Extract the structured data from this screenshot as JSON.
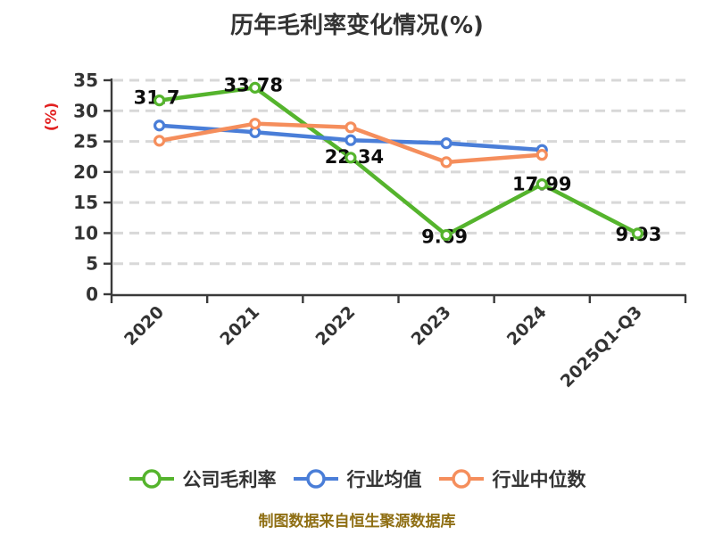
{
  "title": "历年毛利率变化情况(%)",
  "caption": "制图数据来自恒生聚源数据库",
  "ylabel": "(%)",
  "chart_data": {
    "type": "line",
    "title": "历年毛利率变化情况(%)",
    "ylabel": "(%)",
    "categories": [
      "2020",
      "2021",
      "2022",
      "2023",
      "2024",
      "2025Q1-Q3"
    ],
    "yticks": [
      "0",
      "5",
      "10",
      "15",
      "20",
      "25",
      "30",
      "35"
    ],
    "ylim": [
      0,
      35
    ],
    "grid": "horizontal-dashed",
    "legend_position": "bottom",
    "series": [
      {
        "name": "公司毛利率",
        "color": "#55b42d",
        "values": [
          31.7,
          33.78,
          22.34,
          9.69,
          17.99,
          9.93
        ],
        "labels": [
          "31.7",
          "33.78",
          "22.34",
          "9.69",
          "17.99",
          "9.93"
        ],
        "label_offsets": [
          [
            -3,
            -3
          ],
          [
            -2,
            -3
          ],
          [
            4,
            -1
          ],
          [
            -2,
            2
          ],
          [
            0,
            0
          ],
          [
            1,
            1
          ]
        ]
      },
      {
        "name": "行业均值",
        "color": "#4a7ed8",
        "values": [
          27.6,
          26.5,
          25.2,
          24.7,
          23.6,
          null
        ]
      },
      {
        "name": "行业中位数",
        "color": "#f58e5c",
        "values": [
          25.1,
          27.9,
          27.3,
          21.6,
          22.8,
          null
        ]
      }
    ]
  },
  "colors": {
    "title": "#333333",
    "axis": "#3a3a3a",
    "tick_label": "#333333",
    "grid": "#d8d8d8",
    "ylabel": "#e22121",
    "data_label": "#0d0d0d",
    "caption": "#8f6f14",
    "background": "#ffffff"
  }
}
